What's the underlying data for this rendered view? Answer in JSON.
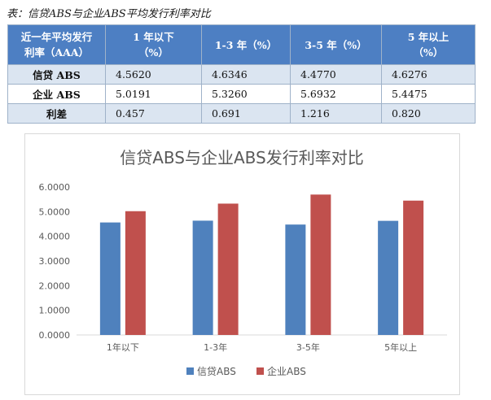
{
  "caption": "表：信贷ABS与企业ABS平均发行利率对比",
  "table": {
    "header": {
      "corner_line1": "近一年平均发行",
      "corner_line2": "利率（AAA）",
      "cols": [
        {
          "line1": "1 年以下",
          "line2": "（%）"
        },
        {
          "line1": "1-3 年（%）",
          "line2": ""
        },
        {
          "line1": "3-5 年（%）",
          "line2": ""
        },
        {
          "line1": "5 年以上",
          "line2": "（%）"
        }
      ]
    },
    "rows": [
      {
        "label": "信贷 ABS",
        "values": [
          "4.5620",
          "4.6346",
          "4.4770",
          "4.6276"
        ]
      },
      {
        "label": "企业 ABS",
        "values": [
          "5.0191",
          "5.3260",
          "5.6932",
          "5.4475"
        ]
      },
      {
        "label": "利差",
        "values": [
          "0.457",
          "0.691",
          "1.216",
          "0.820"
        ]
      }
    ]
  },
  "chart_data": {
    "type": "bar",
    "title": "信贷ABS与企业ABS发行利率对比",
    "categories": [
      "1年以下",
      "1-3年",
      "3-5年",
      "5年以上"
    ],
    "series": [
      {
        "name": "信贷ABS",
        "color": "#4f81bd",
        "values": [
          4.562,
          4.6346,
          4.477,
          4.6276
        ]
      },
      {
        "name": "企业ABS",
        "color": "#c0504d",
        "values": [
          5.0191,
          5.326,
          5.6932,
          5.4475
        ]
      }
    ],
    "yticks": [
      "0.0000",
      "1.0000",
      "2.0000",
      "3.0000",
      "4.0000",
      "5.0000",
      "6.0000"
    ],
    "ylim": [
      0,
      6
    ],
    "grid": false,
    "legend_position": "bottom"
  }
}
